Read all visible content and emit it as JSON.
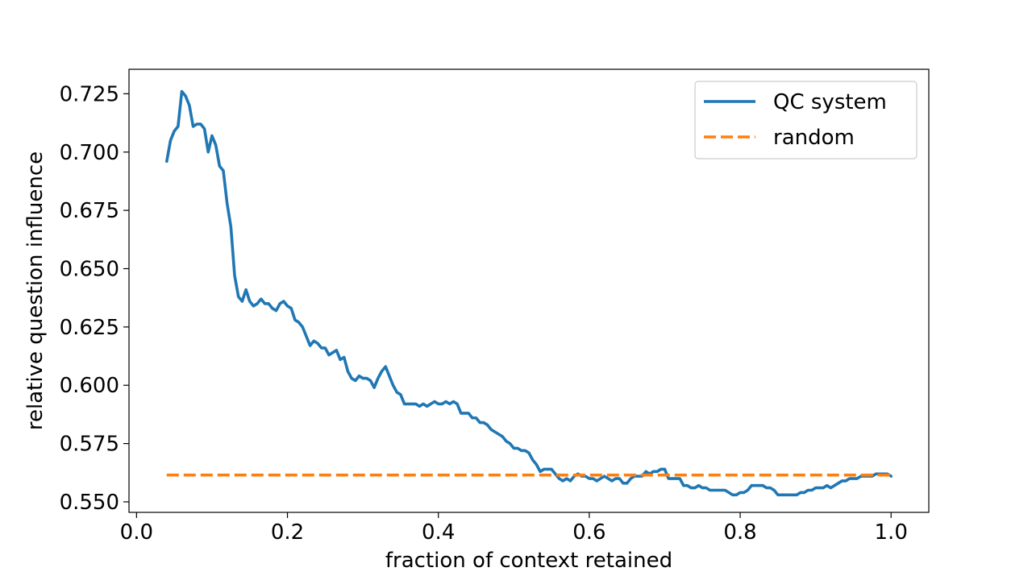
{
  "chart_data": {
    "type": "line",
    "title": "",
    "xlabel": "fraction of context retained",
    "ylabel": "relative question influence",
    "xlim": [
      -0.01,
      1.05
    ],
    "ylim": [
      0.5455,
      0.7355
    ],
    "xticks": [
      0.0,
      0.2,
      0.4,
      0.6,
      0.8,
      1.0
    ],
    "xtick_labels": [
      "0.0",
      "0.2",
      "0.4",
      "0.6",
      "0.8",
      "1.0"
    ],
    "yticks": [
      0.55,
      0.575,
      0.6,
      0.625,
      0.65,
      0.675,
      0.7,
      0.725
    ],
    "ytick_labels": [
      "0.550",
      "0.575",
      "0.600",
      "0.625",
      "0.650",
      "0.675",
      "0.700",
      "0.725"
    ],
    "grid": false,
    "legend_position": "top-right",
    "series": [
      {
        "name": "QC system",
        "color": "#1f77b4",
        "style": "solid",
        "points": [
          [
            0.04,
            0.696
          ],
          [
            0.045,
            0.705
          ],
          [
            0.05,
            0.709
          ],
          [
            0.055,
            0.711
          ],
          [
            0.06,
            0.726
          ],
          [
            0.065,
            0.724
          ],
          [
            0.07,
            0.72
          ],
          [
            0.075,
            0.711
          ],
          [
            0.08,
            0.712
          ],
          [
            0.085,
            0.712
          ],
          [
            0.09,
            0.71
          ],
          [
            0.095,
            0.7
          ],
          [
            0.1,
            0.707
          ],
          [
            0.105,
            0.703
          ],
          [
            0.11,
            0.694
          ],
          [
            0.115,
            0.692
          ],
          [
            0.12,
            0.678
          ],
          [
            0.125,
            0.668
          ],
          [
            0.13,
            0.647
          ],
          [
            0.135,
            0.638
          ],
          [
            0.14,
            0.636
          ],
          [
            0.145,
            0.641
          ],
          [
            0.15,
            0.636
          ],
          [
            0.155,
            0.634
          ],
          [
            0.16,
            0.635
          ],
          [
            0.165,
            0.637
          ],
          [
            0.17,
            0.635
          ],
          [
            0.175,
            0.635
          ],
          [
            0.18,
            0.633
          ],
          [
            0.185,
            0.632
          ],
          [
            0.19,
            0.635
          ],
          [
            0.195,
            0.636
          ],
          [
            0.2,
            0.634
          ],
          [
            0.205,
            0.633
          ],
          [
            0.21,
            0.628
          ],
          [
            0.215,
            0.627
          ],
          [
            0.22,
            0.625
          ],
          [
            0.225,
            0.621
          ],
          [
            0.23,
            0.617
          ],
          [
            0.235,
            0.619
          ],
          [
            0.24,
            0.618
          ],
          [
            0.245,
            0.616
          ],
          [
            0.25,
            0.616
          ],
          [
            0.255,
            0.613
          ],
          [
            0.26,
            0.614
          ],
          [
            0.265,
            0.615
          ],
          [
            0.27,
            0.611
          ],
          [
            0.275,
            0.612
          ],
          [
            0.28,
            0.606
          ],
          [
            0.285,
            0.603
          ],
          [
            0.29,
            0.602
          ],
          [
            0.295,
            0.604
          ],
          [
            0.3,
            0.603
          ],
          [
            0.305,
            0.603
          ],
          [
            0.31,
            0.602
          ],
          [
            0.315,
            0.599
          ],
          [
            0.32,
            0.603
          ],
          [
            0.325,
            0.606
          ],
          [
            0.33,
            0.608
          ],
          [
            0.335,
            0.604
          ],
          [
            0.34,
            0.6
          ],
          [
            0.345,
            0.597
          ],
          [
            0.35,
            0.596
          ],
          [
            0.355,
            0.592
          ],
          [
            0.36,
            0.592
          ],
          [
            0.365,
            0.592
          ],
          [
            0.37,
            0.592
          ],
          [
            0.375,
            0.591
          ],
          [
            0.38,
            0.592
          ],
          [
            0.385,
            0.591
          ],
          [
            0.39,
            0.592
          ],
          [
            0.395,
            0.593
          ],
          [
            0.4,
            0.592
          ],
          [
            0.405,
            0.592
          ],
          [
            0.41,
            0.593
          ],
          [
            0.415,
            0.592
          ],
          [
            0.42,
            0.593
          ],
          [
            0.425,
            0.592
          ],
          [
            0.43,
            0.588
          ],
          [
            0.435,
            0.588
          ],
          [
            0.44,
            0.588
          ],
          [
            0.445,
            0.586
          ],
          [
            0.45,
            0.586
          ],
          [
            0.455,
            0.584
          ],
          [
            0.46,
            0.584
          ],
          [
            0.465,
            0.583
          ],
          [
            0.47,
            0.581
          ],
          [
            0.475,
            0.58
          ],
          [
            0.48,
            0.579
          ],
          [
            0.485,
            0.578
          ],
          [
            0.49,
            0.576
          ],
          [
            0.495,
            0.575
          ],
          [
            0.5,
            0.573
          ],
          [
            0.505,
            0.573
          ],
          [
            0.51,
            0.572
          ],
          [
            0.515,
            0.572
          ],
          [
            0.52,
            0.571
          ],
          [
            0.525,
            0.568
          ],
          [
            0.53,
            0.566
          ],
          [
            0.535,
            0.563
          ],
          [
            0.54,
            0.564
          ],
          [
            0.545,
            0.564
          ],
          [
            0.55,
            0.564
          ],
          [
            0.555,
            0.562
          ],
          [
            0.56,
            0.56
          ],
          [
            0.565,
            0.559
          ],
          [
            0.57,
            0.56
          ],
          [
            0.575,
            0.559
          ],
          [
            0.58,
            0.561
          ],
          [
            0.585,
            0.562
          ],
          [
            0.59,
            0.561
          ],
          [
            0.595,
            0.561
          ],
          [
            0.6,
            0.56
          ],
          [
            0.605,
            0.56
          ],
          [
            0.61,
            0.559
          ],
          [
            0.615,
            0.56
          ],
          [
            0.62,
            0.561
          ],
          [
            0.625,
            0.56
          ],
          [
            0.63,
            0.559
          ],
          [
            0.635,
            0.56
          ],
          [
            0.64,
            0.56
          ],
          [
            0.645,
            0.558
          ],
          [
            0.65,
            0.558
          ],
          [
            0.655,
            0.56
          ],
          [
            0.66,
            0.561
          ],
          [
            0.665,
            0.561
          ],
          [
            0.67,
            0.561
          ],
          [
            0.675,
            0.563
          ],
          [
            0.68,
            0.562
          ],
          [
            0.685,
            0.563
          ],
          [
            0.69,
            0.563
          ],
          [
            0.695,
            0.564
          ],
          [
            0.7,
            0.564
          ],
          [
            0.705,
            0.56
          ],
          [
            0.71,
            0.56
          ],
          [
            0.715,
            0.56
          ],
          [
            0.72,
            0.56
          ],
          [
            0.725,
            0.557
          ],
          [
            0.73,
            0.557
          ],
          [
            0.735,
            0.556
          ],
          [
            0.74,
            0.556
          ],
          [
            0.745,
            0.557
          ],
          [
            0.75,
            0.556
          ],
          [
            0.755,
            0.556
          ],
          [
            0.76,
            0.555
          ],
          [
            0.765,
            0.555
          ],
          [
            0.77,
            0.555
          ],
          [
            0.775,
            0.555
          ],
          [
            0.78,
            0.555
          ],
          [
            0.785,
            0.554
          ],
          [
            0.79,
            0.553
          ],
          [
            0.795,
            0.553
          ],
          [
            0.8,
            0.554
          ],
          [
            0.805,
            0.554
          ],
          [
            0.81,
            0.555
          ],
          [
            0.815,
            0.557
          ],
          [
            0.82,
            0.557
          ],
          [
            0.825,
            0.557
          ],
          [
            0.83,
            0.557
          ],
          [
            0.835,
            0.556
          ],
          [
            0.84,
            0.556
          ],
          [
            0.845,
            0.555
          ],
          [
            0.85,
            0.553
          ],
          [
            0.855,
            0.553
          ],
          [
            0.86,
            0.553
          ],
          [
            0.865,
            0.553
          ],
          [
            0.87,
            0.553
          ],
          [
            0.875,
            0.553
          ],
          [
            0.88,
            0.554
          ],
          [
            0.885,
            0.554
          ],
          [
            0.89,
            0.555
          ],
          [
            0.895,
            0.555
          ],
          [
            0.9,
            0.556
          ],
          [
            0.905,
            0.556
          ],
          [
            0.91,
            0.556
          ],
          [
            0.915,
            0.557
          ],
          [
            0.92,
            0.556
          ],
          [
            0.925,
            0.557
          ],
          [
            0.93,
            0.558
          ],
          [
            0.935,
            0.559
          ],
          [
            0.94,
            0.559
          ],
          [
            0.945,
            0.56
          ],
          [
            0.95,
            0.56
          ],
          [
            0.955,
            0.56
          ],
          [
            0.96,
            0.561
          ],
          [
            0.965,
            0.561
          ],
          [
            0.97,
            0.561
          ],
          [
            0.975,
            0.561
          ],
          [
            0.98,
            0.562
          ],
          [
            0.985,
            0.562
          ],
          [
            0.99,
            0.562
          ],
          [
            0.995,
            0.562
          ],
          [
            1.0,
            0.561
          ]
        ]
      },
      {
        "name": "random",
        "color": "#ff7f0e",
        "style": "dashed",
        "points": [
          [
            0.04,
            0.5615
          ],
          [
            1.0,
            0.5615
          ]
        ]
      }
    ]
  }
}
